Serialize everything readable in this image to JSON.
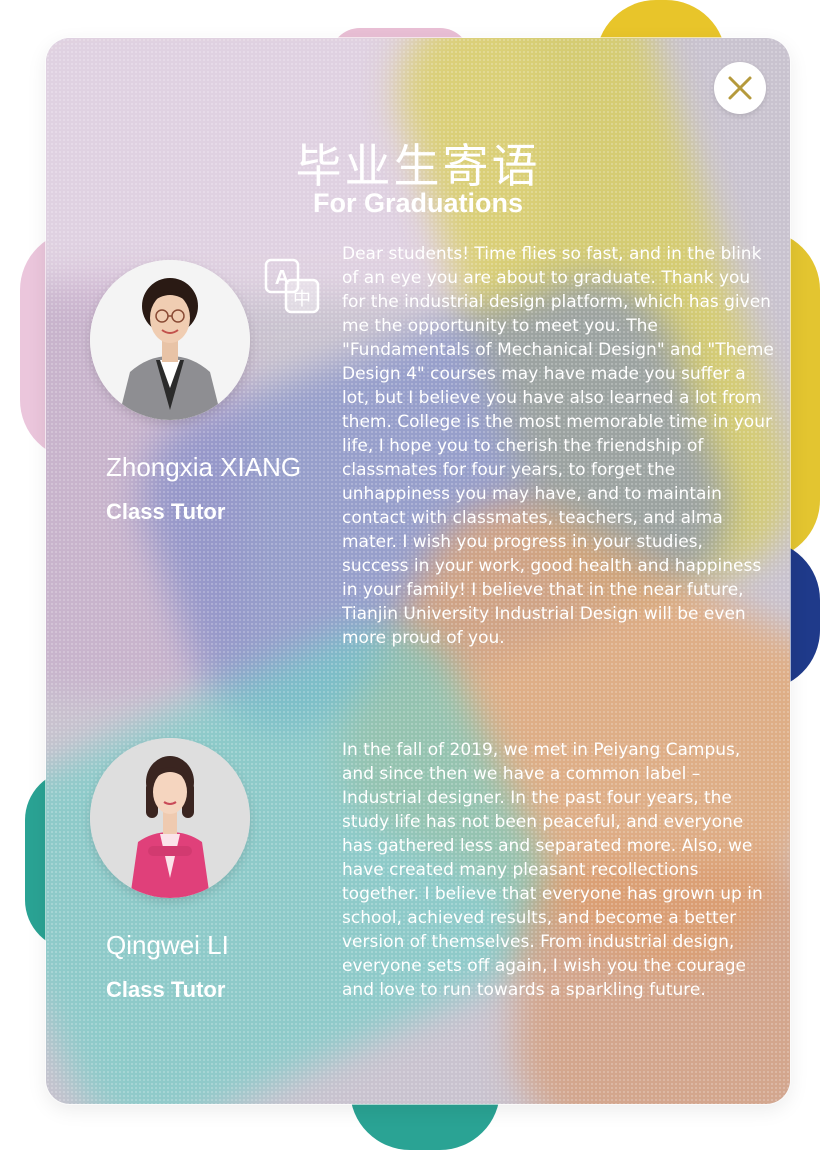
{
  "header": {
    "title_zh": "毕业生寄语",
    "title_en": "For Graduations"
  },
  "close_button": {
    "icon": "close-icon",
    "label": ""
  },
  "translate_button": {
    "icon": "translate-icon",
    "glyph_a": "A",
    "glyph_zh": "中"
  },
  "colors": {
    "accent_yellow": "#e3c530",
    "accent_pink": "#ebc6dc",
    "accent_navy": "#1f3a8a",
    "accent_teal": "#2aa394",
    "accent_orange": "#e2a16b",
    "text": "#ffffff"
  },
  "messages": [
    {
      "name": "Zhongxia XIANG",
      "role": "Class Tutor",
      "text": "Dear students! Time flies so fast, and in the blink of an eye you are about to graduate. Thank you for the industrial design platform, which has given me the opportunity to meet you. The \"Fundamentals of Mechanical Design\" and \"Theme Design 4\" courses may have made you suffer a lot, but I believe you have also learned a lot from them. College is the most memorable time in your life, I hope you to cherish the friendship of classmates for four years, to forget the unhappiness you may have, and to maintain contact with classmates, teachers, and alma mater. I wish you progress in your studies, success in your work, good health and happiness in your family! I believe that in the near future, Tianjin University Industrial Design will be even more proud of you."
    },
    {
      "name": "Qingwei LI",
      "role": "Class Tutor",
      "text": "In the fall of 2019, we met in Peiyang Campus, and since then we have a common label – Industrial designer. In the past four years, the study life has not been peaceful, and everyone has gathered less and separated more. Also, we have created many pleasant recollections together. I believe that everyone has grown up in school, achieved results, and become a better version of themselves. From industrial design, everyone sets off again, I wish you the courage and love to run towards a sparkling future."
    }
  ]
}
